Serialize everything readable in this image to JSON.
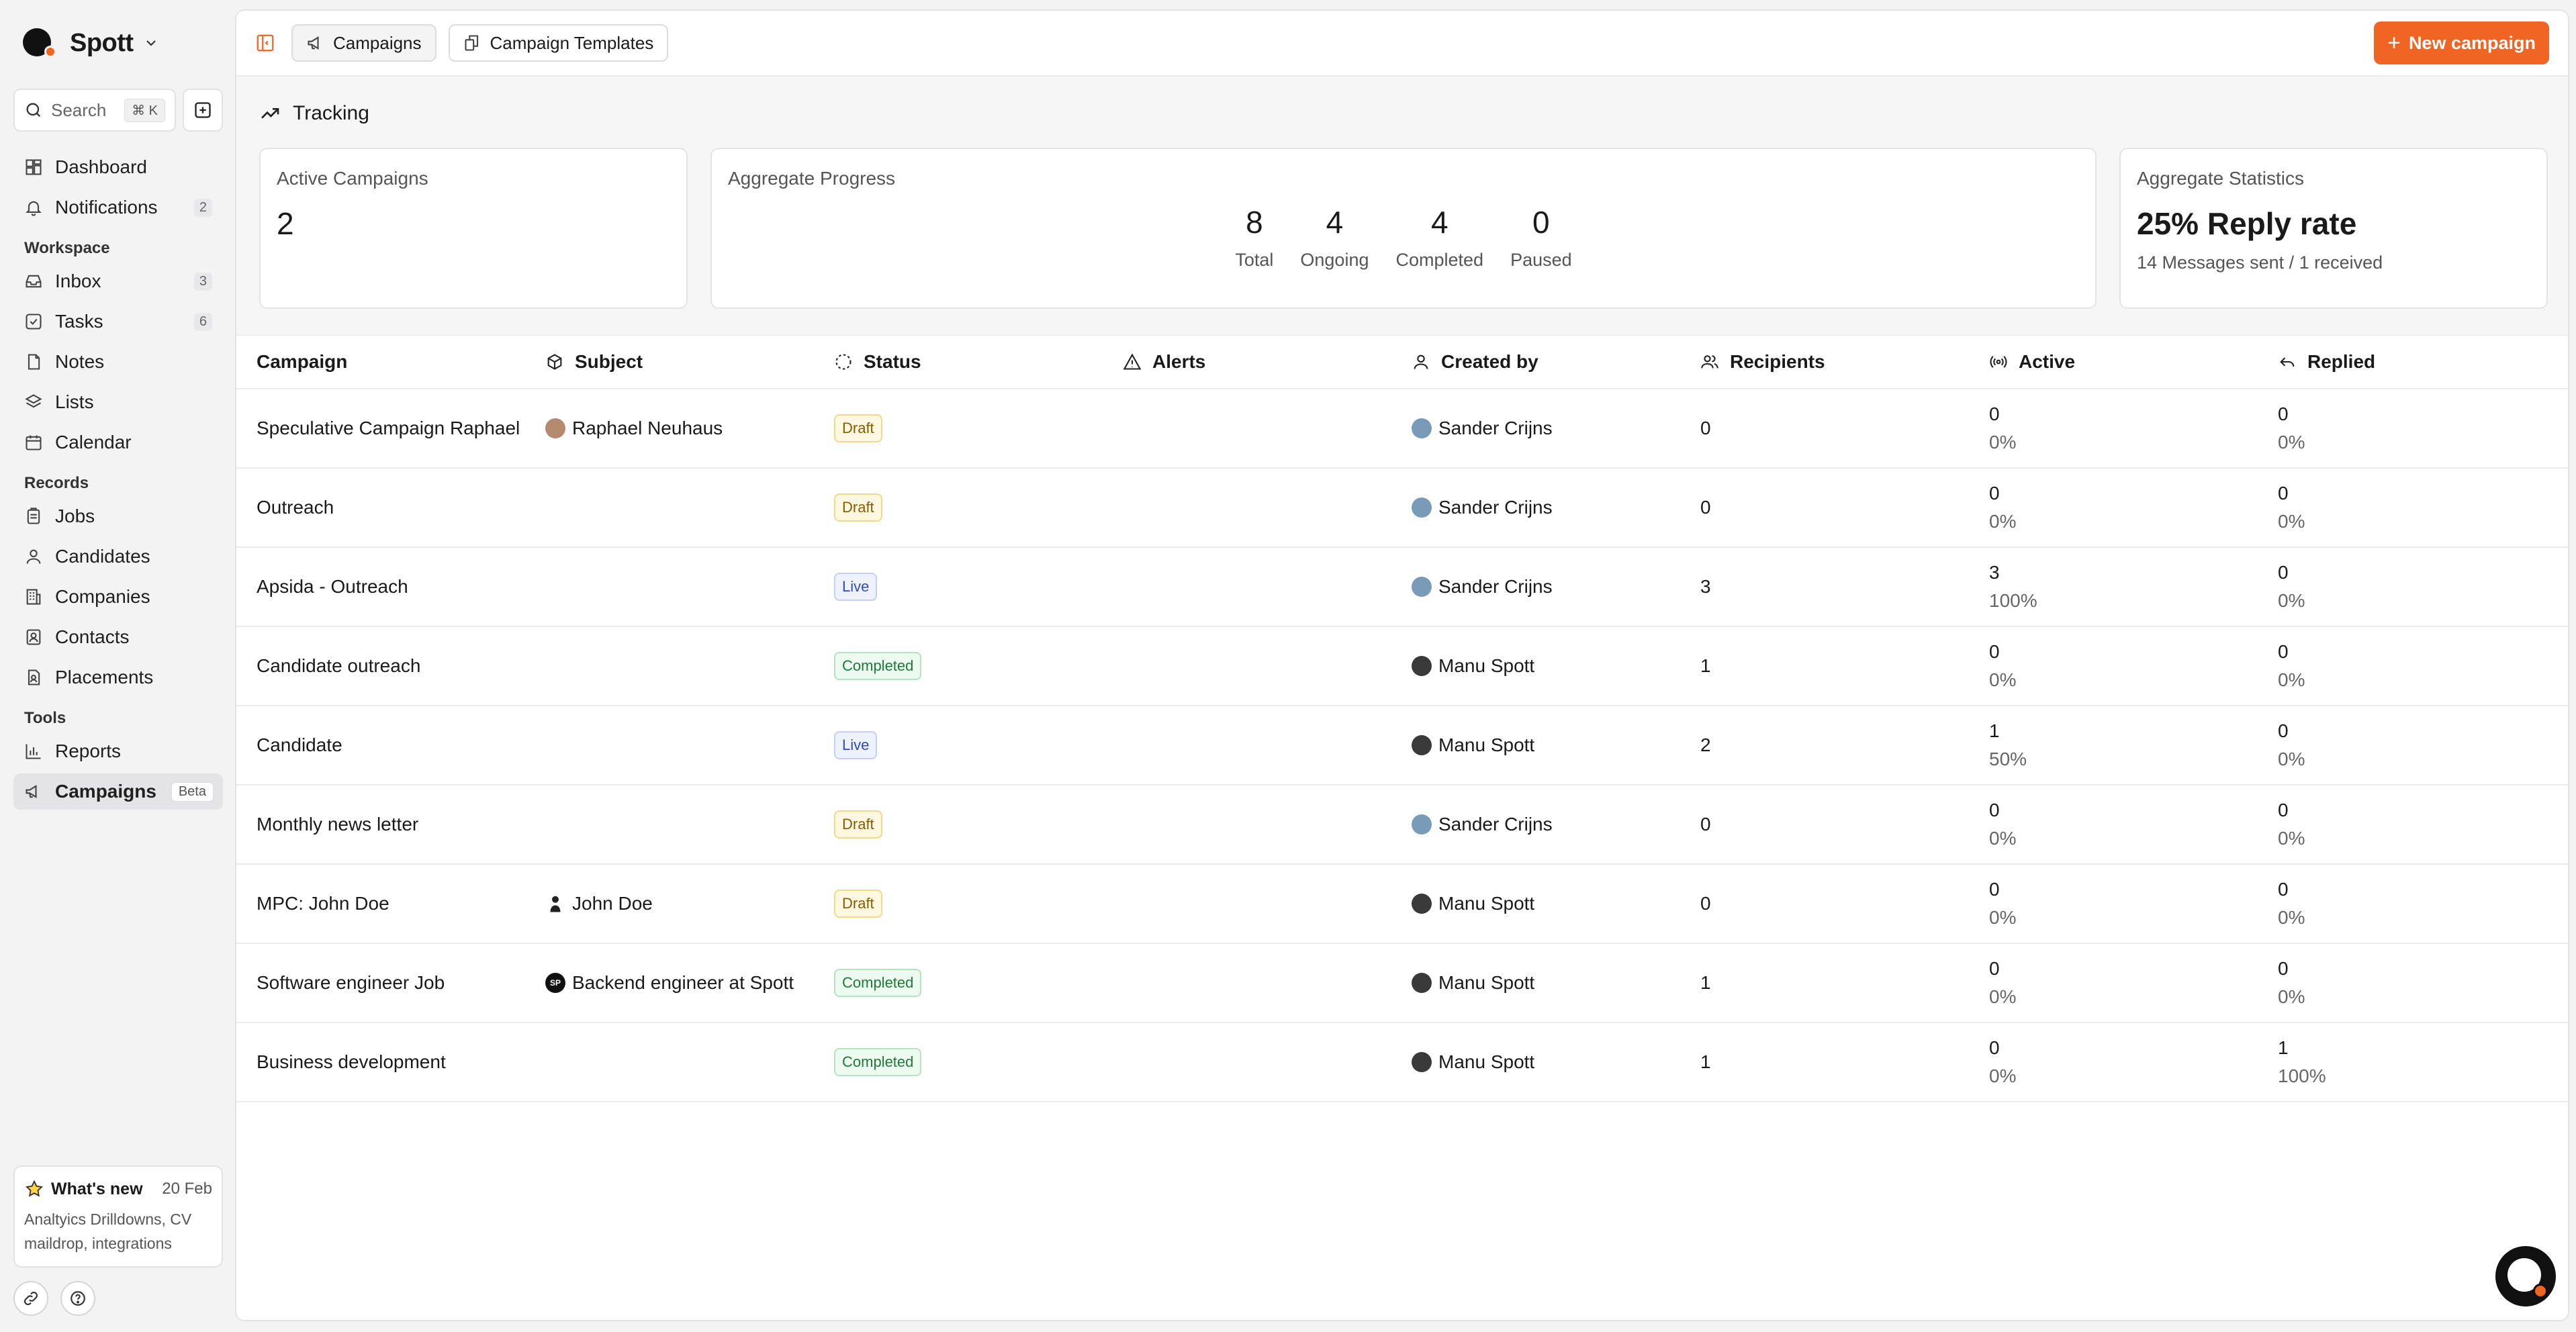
{
  "brand": {
    "name": "Spott"
  },
  "search": {
    "placeholder": "Search",
    "shortcut": "⌘ K"
  },
  "nav": {
    "top": [
      {
        "label": "Dashboard",
        "icon": "dashboard-icon"
      },
      {
        "label": "Notifications",
        "icon": "bell-icon",
        "count": "2"
      }
    ],
    "workspace_label": "Workspace",
    "workspace": [
      {
        "label": "Inbox",
        "icon": "inbox-icon",
        "count": "3"
      },
      {
        "label": "Tasks",
        "icon": "tasks-icon",
        "count": "6"
      },
      {
        "label": "Notes",
        "icon": "notes-icon"
      },
      {
        "label": "Lists",
        "icon": "layers-icon"
      },
      {
        "label": "Calendar",
        "icon": "calendar-icon"
      }
    ],
    "records_label": "Records",
    "records": [
      {
        "label": "Jobs",
        "icon": "clipboard-icon"
      },
      {
        "label": "Candidates",
        "icon": "user-icon"
      },
      {
        "label": "Companies",
        "icon": "building-icon"
      },
      {
        "label": "Contacts",
        "icon": "contact-icon"
      },
      {
        "label": "Placements",
        "icon": "placement-icon"
      }
    ],
    "tools_label": "Tools",
    "tools": [
      {
        "label": "Reports",
        "icon": "chart-icon"
      },
      {
        "label": "Campaigns",
        "icon": "megaphone-icon",
        "badge": "Beta",
        "active": true
      }
    ]
  },
  "whats_new": {
    "title": "What's new",
    "date": "20 Feb",
    "body": "Analtyics Drilldowns, CV maildrop, integrations"
  },
  "topbar": {
    "tabs": [
      {
        "label": "Campaigns",
        "active": true
      },
      {
        "label": "Campaign Templates"
      }
    ],
    "new_button": "New campaign"
  },
  "tracking": {
    "title": "Tracking",
    "active_campaigns": {
      "title": "Active Campaigns",
      "value": "2"
    },
    "aggregate_progress": {
      "title": "Aggregate Progress",
      "stats": [
        {
          "value": "8",
          "label": "Total"
        },
        {
          "value": "4",
          "label": "Ongoing"
        },
        {
          "value": "4",
          "label": "Completed"
        },
        {
          "value": "0",
          "label": "Paused"
        }
      ]
    },
    "aggregate_statistics": {
      "title": "Aggregate Statistics",
      "headline": "25% Reply rate",
      "sub": "14 Messages sent / 1 received"
    }
  },
  "table": {
    "columns": [
      "Campaign",
      "Subject",
      "Status",
      "Alerts",
      "Created by",
      "Recipients",
      "Active",
      "Replied"
    ],
    "rows": [
      {
        "campaign": "Speculative Campaign Raphael",
        "subject": "Raphael Neuhaus",
        "subject_avatar": "raphael",
        "status": "Draft",
        "created_by": "Sander Crijns",
        "creator_avatar": "sander",
        "recipients": "0",
        "active": "0",
        "active_pct": "0%",
        "replied": "0",
        "replied_pct": "0%"
      },
      {
        "campaign": "Outreach",
        "subject": "",
        "subject_avatar": "",
        "status": "Draft",
        "created_by": "Sander Crijns",
        "creator_avatar": "sander",
        "recipients": "0",
        "active": "0",
        "active_pct": "0%",
        "replied": "0",
        "replied_pct": "0%"
      },
      {
        "campaign": "Apsida - Outreach",
        "subject": "",
        "subject_avatar": "",
        "status": "Live",
        "created_by": "Sander Crijns",
        "creator_avatar": "sander",
        "recipients": "3",
        "active": "3",
        "active_pct": "100%",
        "replied": "0",
        "replied_pct": "0%"
      },
      {
        "campaign": "Candidate outreach",
        "subject": "",
        "subject_avatar": "",
        "status": "Completed",
        "created_by": "Manu Spott",
        "creator_avatar": "manu",
        "recipients": "1",
        "active": "0",
        "active_pct": "0%",
        "replied": "0",
        "replied_pct": "0%"
      },
      {
        "campaign": "Candidate",
        "subject": "",
        "subject_avatar": "",
        "status": "Live",
        "created_by": "Manu Spott",
        "creator_avatar": "manu",
        "recipients": "2",
        "active": "1",
        "active_pct": "50%",
        "replied": "0",
        "replied_pct": "0%"
      },
      {
        "campaign": "Monthly news letter",
        "subject": "",
        "subject_avatar": "",
        "status": "Draft",
        "created_by": "Sander Crijns",
        "creator_avatar": "sander",
        "recipients": "0",
        "active": "0",
        "active_pct": "0%",
        "replied": "0",
        "replied_pct": "0%"
      },
      {
        "campaign": "MPC: John Doe",
        "subject": "John Doe",
        "subject_avatar": "john",
        "status": "Draft",
        "created_by": "Manu Spott",
        "creator_avatar": "manu",
        "recipients": "0",
        "active": "0",
        "active_pct": "0%",
        "replied": "0",
        "replied_pct": "0%"
      },
      {
        "campaign": "Software engineer Job",
        "subject": "Backend engineer at Spott",
        "subject_avatar": "sp",
        "subject_initials": "SP",
        "status": "Completed",
        "created_by": "Manu Spott",
        "creator_avatar": "manu",
        "recipients": "1",
        "active": "0",
        "active_pct": "0%",
        "replied": "0",
        "replied_pct": "0%"
      },
      {
        "campaign": "Business development",
        "subject": "",
        "subject_avatar": "",
        "status": "Completed",
        "created_by": "Manu Spott",
        "creator_avatar": "manu",
        "recipients": "1",
        "active": "0",
        "active_pct": "0%",
        "replied": "1",
        "replied_pct": "100%"
      }
    ]
  },
  "colors": {
    "accent": "#f06424",
    "draft": "#8a5a00",
    "live": "#2b4ac4",
    "completed": "#1f7a3a"
  }
}
